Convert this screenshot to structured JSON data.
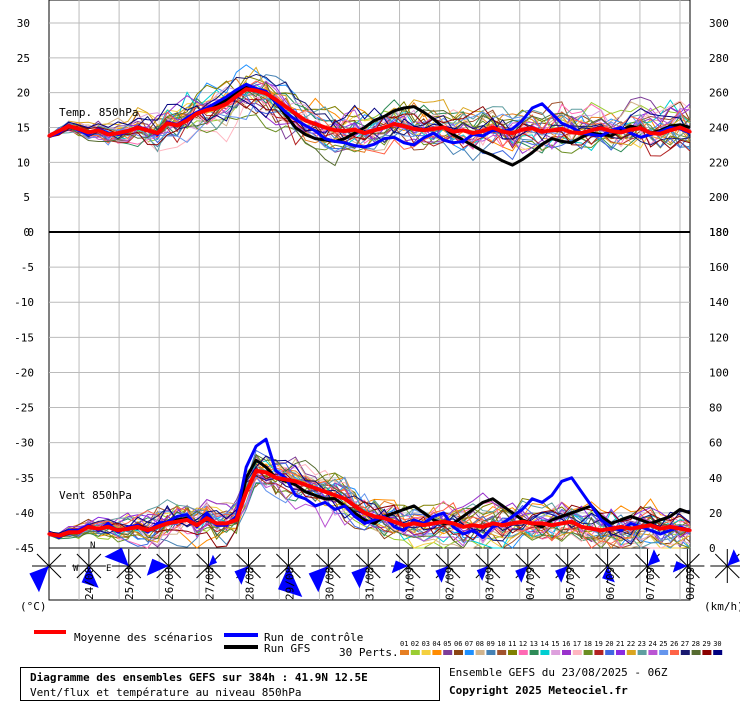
{
  "chart_data": [
    {
      "type": "line",
      "title": "Temp. 850hPa",
      "ylim": [
        0,
        30
      ],
      "y_ticks": [
        0,
        5,
        10,
        15,
        20,
        25,
        30
      ],
      "right_ticks": [
        180,
        200,
        220,
        240,
        260,
        280,
        300
      ],
      "x_labels": [
        "24/08",
        "25/08",
        "26/08",
        "27/08",
        "28/08",
        "29/08",
        "30/08",
        "31/08",
        "01/09",
        "02/09",
        "03/09",
        "04/09",
        "05/09",
        "06/09",
        "07/09",
        "08/09"
      ],
      "x_range": [
        0,
        384
      ],
      "x_step": 6,
      "grid": true,
      "series": [
        {
          "name": "Moyenne des scénarios",
          "color": "#ff0000",
          "values": [
            13.8,
            14.5,
            15.2,
            14.8,
            14.3,
            14.6,
            14.0,
            14.2,
            14.5,
            15.0,
            14.6,
            14.2,
            15.6,
            15.3,
            16.0,
            17.0,
            17.5,
            17.8,
            18.4,
            19.5,
            20.5,
            20.3,
            19.9,
            19.0,
            18.0,
            17.0,
            16.0,
            15.5,
            15.0,
            14.6,
            14.5,
            14.7,
            14.2,
            14.6,
            15.0,
            15.5,
            15.2,
            14.8,
            14.6,
            14.8,
            15.0,
            14.4,
            14.6,
            14.2,
            14.5,
            15.0,
            14.4,
            14.2,
            14.7,
            14.9,
            14.4,
            14.6,
            14.8,
            14.3,
            14.2,
            14.6,
            14.9,
            14.5,
            14.3,
            14.7,
            14.9,
            14.2,
            14.1,
            14.6,
            15.0,
            14.4
          ]
        },
        {
          "name": "Run de contrôle",
          "color": "#0000ff",
          "values": [
            13.7,
            14.2,
            15.3,
            14.6,
            14.0,
            14.8,
            14.2,
            14.0,
            14.4,
            15.1,
            14.7,
            14.0,
            15.8,
            15.4,
            16.4,
            17.2,
            17.8,
            18.6,
            19.4,
            20.4,
            21.2,
            20.6,
            20.2,
            18.6,
            17.2,
            16.1,
            15.3,
            14.5,
            13.4,
            13.0,
            12.8,
            12.4,
            12.2,
            12.6,
            13.4,
            13.6,
            12.8,
            12.5,
            13.5,
            14.2,
            13.2,
            12.8,
            13.0,
            14.0,
            13.8,
            14.6,
            14.4,
            14.8,
            16.0,
            17.8,
            18.4,
            17.0,
            15.6,
            15.0,
            14.2,
            14.0,
            13.8,
            14.6,
            15.0,
            14.2,
            13.6,
            14.0,
            14.4,
            15.0,
            14.8,
            14.2
          ]
        },
        {
          "name": "Run GFS",
          "color": "#000000",
          "values": [
            13.7,
            14.4,
            15.3,
            14.7,
            14.1,
            14.7,
            14.1,
            14.1,
            14.5,
            15.0,
            14.6,
            14.1,
            15.7,
            15.2,
            16.2,
            17.1,
            17.6,
            18.2,
            19.0,
            20.0,
            20.8,
            20.5,
            20.0,
            18.6,
            16.8,
            15.0,
            14.0,
            13.4,
            13.2,
            13.0,
            13.4,
            14.2,
            15.0,
            16.0,
            16.6,
            17.4,
            17.8,
            18.0,
            17.2,
            16.2,
            15.0,
            14.0,
            13.2,
            12.4,
            11.6,
            11.0,
            10.2,
            9.6,
            10.4,
            11.4,
            12.6,
            13.4,
            13.0,
            12.8,
            13.6,
            14.2,
            14.0,
            13.8,
            14.6,
            15.2,
            14.8,
            14.2,
            14.6,
            15.2,
            15.4,
            15.0
          ]
        }
      ]
    },
    {
      "type": "line",
      "title": "Vent 850hPa",
      "ylim": [
        0,
        180
      ],
      "left_ticks": [
        -45,
        -40,
        -35,
        -30,
        -25,
        -20,
        -15,
        -10,
        -5,
        0
      ],
      "y_ticks": [
        0,
        20,
        40,
        60,
        80,
        100,
        120,
        140,
        160,
        180
      ],
      "left_unit": "(°C)",
      "right_unit": "(km/h)",
      "grid": true,
      "series": [
        {
          "name": "Moyenne des scénarios",
          "color": "#ff0000",
          "values": [
            8,
            7,
            9,
            9,
            12,
            11,
            12,
            10,
            11,
            12,
            10,
            12,
            14,
            15,
            16,
            13,
            17,
            14,
            14,
            16,
            32,
            44,
            43,
            40,
            39,
            38,
            36,
            34,
            32,
            30,
            28,
            24,
            20,
            18,
            17,
            15,
            13,
            14,
            13,
            14,
            15,
            14,
            12,
            13,
            12,
            14,
            13,
            14,
            15,
            14,
            14,
            13,
            14,
            15,
            12,
            11,
            10,
            11,
            12,
            11,
            12,
            13,
            11,
            12,
            11,
            10
          ]
        },
        {
          "name": "Run de contrôle",
          "color": "#0000ff",
          "values": [
            9,
            6,
            10,
            10,
            13,
            10,
            14,
            9,
            12,
            13,
            9,
            14,
            15,
            18,
            19,
            12,
            20,
            13,
            13,
            18,
            46,
            58,
            62,
            44,
            40,
            30,
            28,
            24,
            26,
            22,
            24,
            18,
            14,
            16,
            18,
            12,
            10,
            16,
            14,
            18,
            20,
            12,
            8,
            10,
            6,
            12,
            14,
            18,
            22,
            28,
            26,
            30,
            38,
            40,
            32,
            24,
            16,
            12,
            10,
            14,
            12,
            10,
            8,
            10,
            12,
            10
          ]
        },
        {
          "name": "Run GFS",
          "color": "#000000",
          "values": [
            9,
            7,
            9,
            10,
            12,
            11,
            13,
            10,
            11,
            13,
            10,
            13,
            14,
            16,
            17,
            13,
            18,
            14,
            14,
            17,
            40,
            50,
            46,
            40,
            38,
            36,
            32,
            30,
            28,
            28,
            24,
            20,
            16,
            14,
            18,
            20,
            22,
            24,
            20,
            16,
            14,
            14,
            18,
            22,
            26,
            28,
            24,
            20,
            16,
            14,
            12,
            16,
            18,
            20,
            22,
            24,
            18,
            14,
            16,
            18,
            16,
            14,
            16,
            18,
            22,
            20
          ]
        }
      ]
    }
  ],
  "legend": {
    "mean_label": "Moyenne des scénarios",
    "control_label": "Run de contrôle",
    "gfs_label": "Run GFS",
    "perts_label": "30 Perts.",
    "pert_numbers": [
      "01",
      "02",
      "03",
      "04",
      "05",
      "06",
      "07",
      "08",
      "09",
      "10",
      "11",
      "12",
      "13",
      "14",
      "15",
      "16",
      "17",
      "18",
      "19",
      "20",
      "21",
      "22",
      "23",
      "24",
      "25",
      "26",
      "27",
      "28",
      "29",
      "30"
    ],
    "pert_colors": [
      "#e67e22",
      "#9acd32",
      "#f4d03f",
      "#ff8c00",
      "#7d3c98",
      "#8b4513",
      "#1e90ff",
      "#d2b48c",
      "#4682b4",
      "#a0522d",
      "#808000",
      "#ff69b4",
      "#2e8b57",
      "#00ced1",
      "#dda0dd",
      "#9932cc",
      "#ffb6c1",
      "#6b8e23",
      "#b22222",
      "#4169e1",
      "#8a2be2",
      "#daa520",
      "#5f9ea0",
      "#ba55d3",
      "#6495ed",
      "#ff6347",
      "#191970",
      "#556b2f",
      "#8b0000",
      "#000080"
    ]
  },
  "compass": {
    "n": "N",
    "w": "W",
    "e": "E"
  },
  "wind_roses": [
    {
      "dir": "SW",
      "size": 0.55
    },
    {
      "dir": "S",
      "size": 0.45
    },
    {
      "dir": "NW",
      "size": 0.5
    },
    {
      "dir": "W",
      "size": 0.45
    },
    {
      "dir": "NE",
      "size": 0.15
    },
    {
      "dir": "SW",
      "size": 0.35
    },
    {
      "dir": "S",
      "size": 0.7
    },
    {
      "dir": "SW",
      "size": 0.55
    },
    {
      "dir": "SW",
      "size": 0.45
    },
    {
      "dir": "W",
      "size": 0.3
    },
    {
      "dir": "SW",
      "size": 0.3
    },
    {
      "dir": "SW",
      "size": 0.25
    },
    {
      "dir": "SW",
      "size": 0.3
    },
    {
      "dir": "SW",
      "size": 0.3
    },
    {
      "dir": "S",
      "size": 0.3
    },
    {
      "dir": "NE",
      "size": 0.3
    },
    {
      "dir": "W",
      "size": 0.25
    },
    {
      "dir": "NE",
      "size": 0.3
    },
    {
      "dir": "S",
      "size": 0.25
    }
  ],
  "footer": {
    "title_line": "Diagramme des ensembles GEFS sur 384h : 41.9N 12.5E",
    "subtitle_line": "Vent/flux et température au niveau 850hPa",
    "ensemble_line": "Ensemble GEFS du 23/08/2025 - 06Z",
    "copyright_line": "Copyright 2025 Meteociel.fr"
  }
}
